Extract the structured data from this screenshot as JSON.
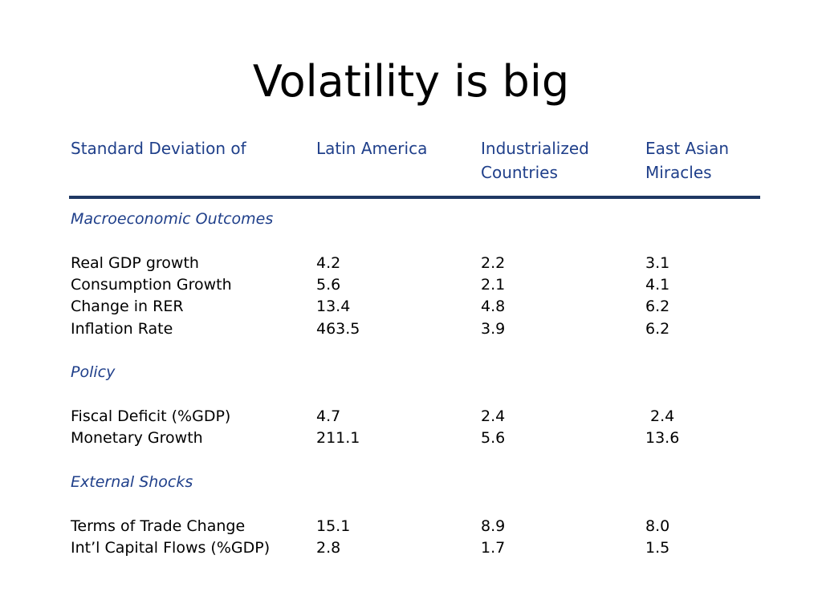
{
  "title": "Volatility is big",
  "header": {
    "col0": "Standard Deviation of",
    "col1": "Latin America",
    "col2": "Industrialized\nCountries",
    "col3": "East Asian\nMiracles"
  },
  "sections": [
    {
      "label": "Macroeconomic Outcomes",
      "rows": [
        {
          "name": "Real GDP growth",
          "la": "4.2",
          "ic": "2.2",
          "ea": "3.1"
        },
        {
          "name": "Consumption Growth",
          "la": "5.6",
          "ic": "2.1",
          "ea": "4.1"
        },
        {
          "name": "Change in RER",
          "la": "13.4",
          "ic": "4.8",
          "ea": "6.2"
        },
        {
          "name": "Inflation Rate",
          "la": "463.5",
          "ic": "3.9",
          "ea": "6.2"
        }
      ]
    },
    {
      "label": "Policy",
      "rows": [
        {
          "name": "Fiscal Deficit (%GDP)",
          "la": "4.7",
          "ic": "2.4",
          "ea": " 2.4"
        },
        {
          "name": "Monetary Growth",
          "la": "211.1",
          "ic": "5.6",
          "ea": "13.6"
        }
      ]
    },
    {
      "label": "External Shocks",
      "rows": [
        {
          "name": "Terms of Trade Change",
          "la": "15.1",
          "ic": "8.9",
          "ea": "8.0"
        },
        {
          "name": "Int’l Capital Flows (%GDP)",
          "la": "2.8",
          "ic": "1.7",
          "ea": "1.5"
        }
      ]
    }
  ]
}
